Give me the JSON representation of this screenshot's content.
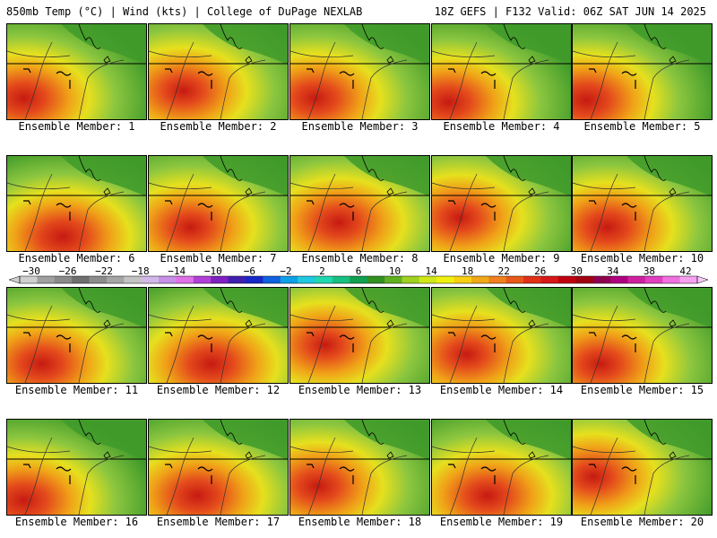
{
  "header": {
    "left": "850mb Temp (°C) | Wind (kts) | College of DuPage NEXLAB",
    "right": "18Z GEFS | F132 Valid: 06Z SAT JUN 14 2025"
  },
  "members": [
    {
      "label": "Ensemble Member: 1",
      "warmth": 0.55,
      "hot_x": 0.12,
      "hot_y": 0.78
    },
    {
      "label": "Ensemble Member: 2",
      "warmth": 0.7,
      "hot_x": 0.25,
      "hot_y": 0.7
    },
    {
      "label": "Ensemble Member: 3",
      "warmth": 0.55,
      "hot_x": 0.18,
      "hot_y": 0.78
    },
    {
      "label": "Ensemble Member: 4",
      "warmth": 0.55,
      "hot_x": 0.12,
      "hot_y": 0.82
    },
    {
      "label": "Ensemble Member: 5",
      "warmth": 0.45,
      "hot_x": 0.1,
      "hot_y": 0.8
    },
    {
      "label": "Ensemble Member: 6",
      "warmth": 0.4,
      "hot_x": 0.4,
      "hot_y": 0.85
    },
    {
      "label": "Ensemble Member: 7",
      "warmth": 0.7,
      "hot_x": 0.3,
      "hot_y": 0.75
    },
    {
      "label": "Ensemble Member: 8",
      "warmth": 0.6,
      "hot_x": 0.35,
      "hot_y": 0.7
    },
    {
      "label": "Ensemble Member: 9",
      "warmth": 0.75,
      "hot_x": 0.2,
      "hot_y": 0.65
    },
    {
      "label": "Ensemble Member: 10",
      "warmth": 0.55,
      "hot_x": 0.25,
      "hot_y": 0.75
    },
    {
      "label": "Ensemble Member: 11",
      "warmth": 0.55,
      "hot_x": 0.25,
      "hot_y": 0.8
    },
    {
      "label": "Ensemble Member: 12",
      "warmth": 0.5,
      "hot_x": 0.45,
      "hot_y": 0.8
    },
    {
      "label": "Ensemble Member: 13",
      "warmth": 0.8,
      "hot_x": 0.25,
      "hot_y": 0.6
    },
    {
      "label": "Ensemble Member: 14",
      "warmth": 0.75,
      "hot_x": 0.25,
      "hot_y": 0.7
    },
    {
      "label": "Ensemble Member: 15",
      "warmth": 0.65,
      "hot_x": 0.2,
      "hot_y": 0.8
    },
    {
      "label": "Ensemble Member: 16",
      "warmth": 0.45,
      "hot_x": 0.12,
      "hot_y": 0.85
    },
    {
      "label": "Ensemble Member: 17",
      "warmth": 0.5,
      "hot_x": 0.35,
      "hot_y": 0.8
    },
    {
      "label": "Ensemble Member: 18",
      "warmth": 0.6,
      "hot_x": 0.2,
      "hot_y": 0.7
    },
    {
      "label": "Ensemble Member: 19",
      "warmth": 0.6,
      "hot_x": 0.4,
      "hot_y": 0.8
    },
    {
      "label": "Ensemble Member: 20",
      "warmth": 0.75,
      "hot_x": 0.15,
      "hot_y": 0.6
    }
  ],
  "colorbar": {
    "ticks": [
      "−30",
      "−26",
      "−22",
      "−18",
      "−14",
      "−10",
      "−6",
      "−2",
      "2",
      "6",
      "10",
      "14",
      "18",
      "22",
      "26",
      "30",
      "34",
      "38",
      "42"
    ],
    "colors": [
      "#cfcfcf",
      "#a0a0a0",
      "#8a8a8a",
      "#6f6f6f",
      "#8c8c8c",
      "#a5a5a5",
      "#c3c3c3",
      "#d2b8e8",
      "#c890e8",
      "#e070e8",
      "#b040d8",
      "#8020c0",
      "#4020b0",
      "#1828c8",
      "#1060e0",
      "#10a0e8",
      "#20c8e0",
      "#20d8b0",
      "#18c080",
      "#10a050",
      "#309020",
      "#60b020",
      "#a0d020",
      "#d0e818",
      "#f0f010",
      "#f8d010",
      "#f0a818",
      "#f08020",
      "#e85818",
      "#e03018",
      "#d81818",
      "#c00010",
      "#a00010",
      "#900050",
      "#b00080",
      "#d020a0",
      "#e040c0",
      "#f070e0",
      "#f8a0f0"
    ],
    "unit_step": 2
  },
  "palette": {
    "green": "#3f9a2a",
    "lightgreen": "#8cc63f",
    "yellow": "#e6e01e",
    "orange": "#f0a218",
    "red": "#e44a1c",
    "darkred": "#c61a12"
  }
}
